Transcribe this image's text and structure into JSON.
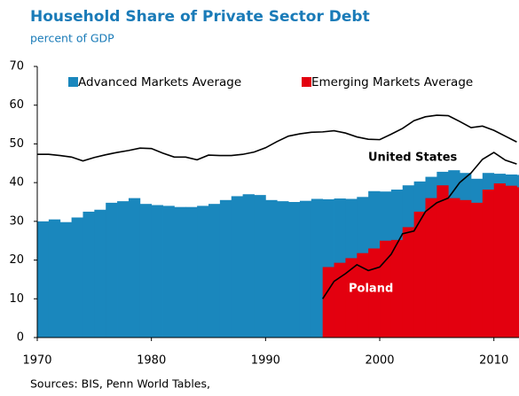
{
  "chart_data": {
    "type": "step-area-line",
    "title": "Household Share of Private Sector Debt",
    "subtitle": "percent of GDP",
    "source": "Sources: BIS, Penn World Tables,",
    "xlim": [
      1970,
      2012.2
    ],
    "xticks": [
      1970,
      1980,
      1990,
      2000,
      2010
    ],
    "ylim": [
      0,
      70
    ],
    "yticks": [
      0,
      10,
      20,
      30,
      40,
      50,
      60,
      70
    ],
    "legend": "top",
    "areas": [
      {
        "name": "Advanced Markets Average",
        "color": "#1a87bd",
        "x": [
          1970,
          1971,
          1972,
          1973,
          1974,
          1975,
          1976,
          1977,
          1978,
          1979,
          1980,
          1981,
          1982,
          1983,
          1984,
          1985,
          1986,
          1987,
          1988,
          1989,
          1990,
          1991,
          1992,
          1993,
          1994,
          1995,
          1996,
          1997,
          1998,
          1999,
          2000,
          2001,
          2002,
          2003,
          2004,
          2005,
          2006,
          2007,
          2008,
          2009,
          2010,
          2011,
          2012
        ],
        "values": [
          30,
          30.5,
          29.8,
          31,
          32.5,
          33,
          34.8,
          35.2,
          36,
          34.5,
          34.2,
          34,
          33.7,
          33.7,
          34,
          34.5,
          35.5,
          36.5,
          37,
          36.8,
          35.5,
          35.2,
          35,
          35.3,
          35.8,
          35.7,
          35.9,
          35.8,
          36.3,
          37.8,
          37.7,
          38.2,
          39.3,
          40.3,
          41.5,
          42.8,
          43.2,
          42.5,
          41,
          42.5,
          42.3,
          42.1,
          42
        ]
      },
      {
        "name": "Emerging Markets Average",
        "color": "#e3000f",
        "x": [
          1995,
          1996,
          1997,
          1998,
          1999,
          2000,
          2001,
          2002,
          2003,
          2004,
          2005,
          2006,
          2007,
          2008,
          2009,
          2010,
          2011,
          2012
        ],
        "values": [
          18.2,
          19.3,
          20.5,
          21.8,
          23,
          25,
          25.2,
          28.5,
          32.5,
          36,
          39.3,
          36,
          35.5,
          34.8,
          38.2,
          39.8,
          39.2,
          38.8
        ]
      }
    ],
    "lines": [
      {
        "name": "United States",
        "color": "#000000",
        "x": [
          1970,
          1971,
          1972,
          1973,
          1974,
          1975,
          1976,
          1977,
          1978,
          1979,
          1980,
          1981,
          1982,
          1983,
          1984,
          1985,
          1986,
          1987,
          1988,
          1989,
          1990,
          1991,
          1992,
          1993,
          1994,
          1995,
          1996,
          1997,
          1998,
          1999,
          2000,
          2001,
          2002,
          2003,
          2004,
          2005,
          2006,
          2007,
          2008,
          2009,
          2010,
          2011,
          2012
        ],
        "values": [
          47.3,
          47.3,
          47,
          46.6,
          45.6,
          46.5,
          47.2,
          47.8,
          48.3,
          48.9,
          48.8,
          47.6,
          46.6,
          46.6,
          45.9,
          47.1,
          47,
          47,
          47.3,
          47.9,
          49,
          50.6,
          52,
          52.6,
          53,
          53.1,
          53.4,
          52.8,
          51.8,
          51.2,
          51.1,
          52.5,
          54,
          56,
          57,
          57.4,
          57.3,
          55.8,
          54.2,
          54.6,
          53.5,
          52,
          50.5
        ]
      },
      {
        "name": "Poland",
        "color": "#000000",
        "x": [
          1995,
          1996,
          1997,
          1998,
          1999,
          2000,
          2001,
          2002,
          2003,
          2004,
          2005,
          2006,
          2007,
          2008,
          2009,
          2010,
          2011,
          2012
        ],
        "values": [
          10,
          14.5,
          16.5,
          18.8,
          17.3,
          18.2,
          21.5,
          26.8,
          27.5,
          32.5,
          34.8,
          36,
          40,
          42.5,
          46,
          47.8,
          45.8,
          44.8
        ]
      }
    ]
  }
}
